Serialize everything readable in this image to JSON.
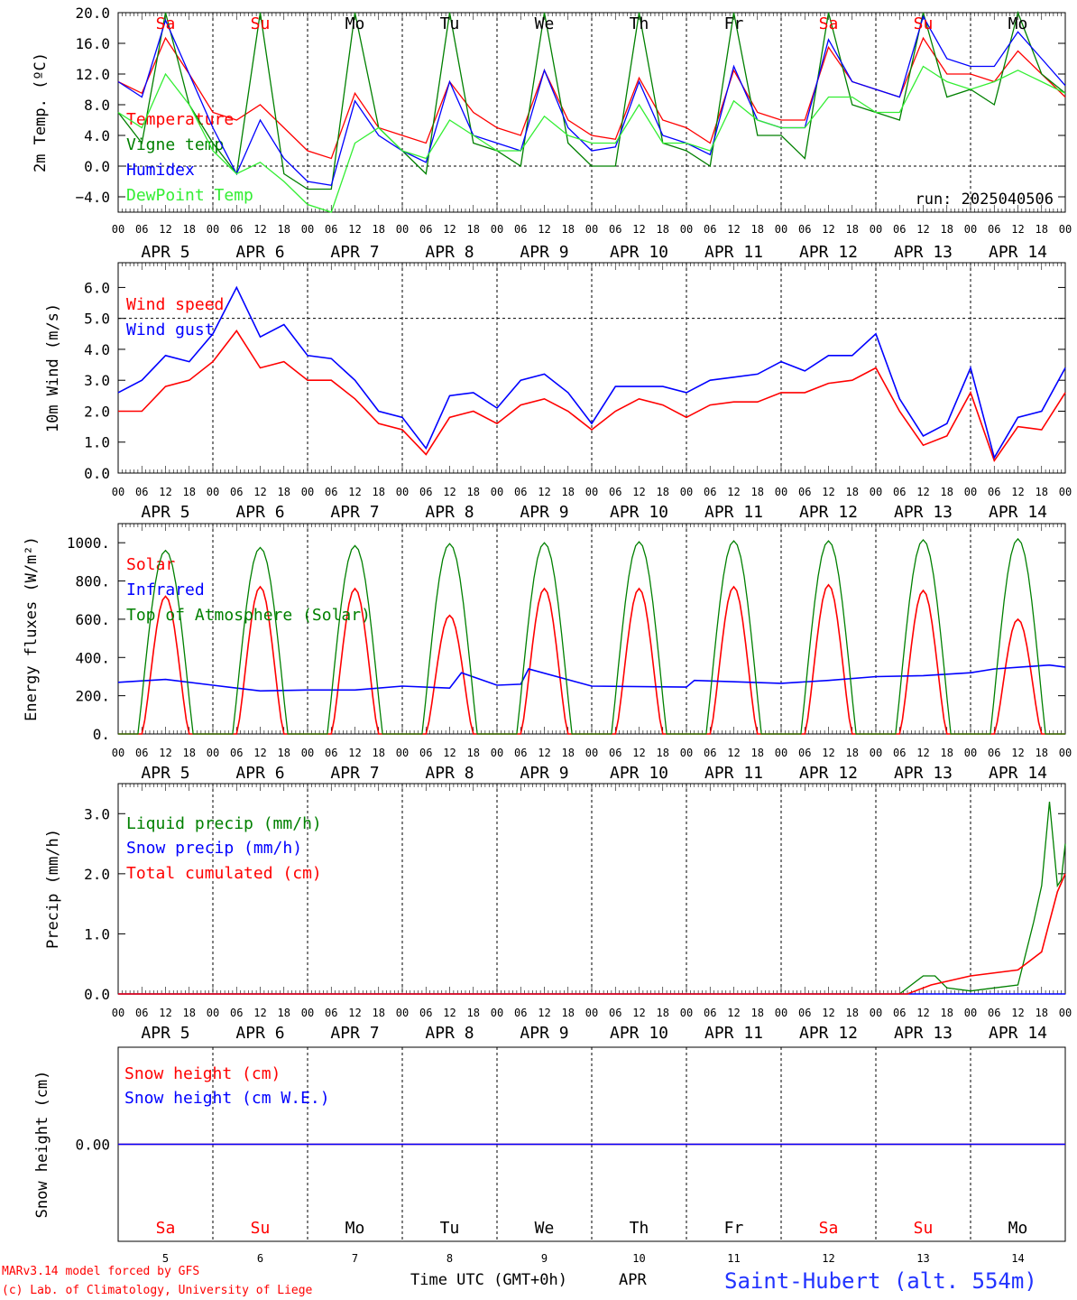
{
  "days": {
    "names": [
      "Sa",
      "Su",
      "Mo",
      "Tu",
      "We",
      "Th",
      "Fr",
      "Sa",
      "Su",
      "Mo"
    ],
    "weekend_flags": [
      true,
      true,
      false,
      false,
      false,
      false,
      false,
      true,
      true,
      false
    ],
    "dates": [
      "APR  5",
      "APR  6",
      "APR  7",
      "APR  8",
      "APR  9",
      "APR 10",
      "APR 11",
      "APR 12",
      "APR 13",
      "APR 14"
    ],
    "numbers": [
      "5",
      "6",
      "7",
      "8",
      "9",
      "10",
      "11",
      "12",
      "13",
      "14"
    ],
    "hour_labels": [
      "00",
      "06",
      "12",
      "18"
    ],
    "final_hour_label": "00"
  },
  "colors": {
    "red": "#ff0000",
    "green": "#008000",
    "blue": "#0000ff",
    "lightgreen": "#33ee33",
    "dark": "#000000"
  },
  "footer": {
    "model_line1": "MARv3.14 model forced by GFS",
    "model_line2": "(c) Lab. of Climatology, University of Liege",
    "time_axis_label": "Time UTC (GMT+0h)",
    "month_label": "APR",
    "station": "Saint-Hubert (alt. 554m)"
  },
  "chart_data": [
    {
      "type": "line",
      "ylabel": "2m Temp. (ºC)",
      "y_ticks": [
        "−4.0",
        "0.0",
        "4.0",
        "8.0",
        "12.0",
        "16.0",
        "20.0"
      ],
      "ylim": [
        -6,
        20
      ],
      "reference_line": 0,
      "run_label": "run: 2025040506",
      "x_unit": "hours since APR 5 00 UTC",
      "series": [
        {
          "name": "Temperature",
          "color": "red",
          "x": [
            0,
            6,
            12,
            18,
            24,
            30,
            36,
            42,
            48,
            54,
            60,
            66,
            72,
            78,
            84,
            90,
            96,
            102,
            108,
            114,
            120,
            126,
            132,
            138,
            144,
            150,
            156,
            162,
            168,
            174,
            180,
            186,
            192,
            198,
            204,
            210,
            216,
            222,
            228,
            234,
            240
          ],
          "y": [
            11,
            9.5,
            16.7,
            12,
            7,
            6,
            8,
            5,
            2,
            1,
            9.5,
            5,
            4,
            3,
            11,
            7,
            5,
            4,
            12.5,
            6,
            4,
            3.5,
            11.5,
            6,
            5,
            3,
            12.5,
            7,
            6,
            6,
            15.5,
            11,
            10,
            9,
            16.7,
            12,
            12,
            11,
            15,
            12,
            9
          ]
        },
        {
          "name": "Vigne temp",
          "color": "green",
          "x": [
            0,
            6,
            12,
            18,
            24,
            30,
            36,
            42,
            48,
            54,
            60,
            66,
            72,
            78,
            84,
            90,
            96,
            102,
            108,
            114,
            120,
            126,
            132,
            138,
            144,
            150,
            156,
            162,
            168,
            174,
            180,
            186,
            192,
            198,
            204,
            210,
            216,
            222,
            228,
            234,
            240
          ],
          "y": [
            7,
            3,
            20.5,
            8,
            3,
            -1,
            20.5,
            -1,
            -3,
            -3,
            20.5,
            5,
            2,
            -1,
            20.5,
            3,
            2,
            0,
            20.5,
            3,
            0,
            0,
            20.5,
            3,
            2,
            0,
            20.5,
            4,
            4,
            1,
            20.5,
            8,
            7,
            6,
            20.5,
            9,
            10,
            8,
            20.5,
            12,
            9.5
          ]
        },
        {
          "name": "Humidex",
          "color": "blue",
          "x": [
            0,
            6,
            12,
            18,
            24,
            30,
            36,
            42,
            48,
            54,
            60,
            66,
            72,
            78,
            84,
            90,
            96,
            102,
            108,
            114,
            120,
            126,
            132,
            138,
            144,
            150,
            156,
            162,
            168,
            174,
            180,
            186,
            192,
            198,
            204,
            210,
            216,
            222,
            228,
            234,
            240
          ],
          "y": [
            11,
            9,
            19,
            12,
            5,
            -1,
            6,
            1,
            -2,
            -2.5,
            8.5,
            4,
            2,
            0.5,
            11,
            4,
            3,
            2,
            12.5,
            5,
            2,
            2.5,
            11,
            4,
            3,
            1.5,
            13,
            6,
            5,
            5,
            16.5,
            11,
            10,
            9,
            19.5,
            14,
            13,
            13,
            17.5,
            14,
            10.5
          ]
        },
        {
          "name": "DewPoint Temp",
          "color": "lightgreen",
          "x": [
            0,
            6,
            12,
            18,
            24,
            30,
            36,
            42,
            48,
            54,
            60,
            66,
            72,
            78,
            84,
            90,
            96,
            102,
            108,
            114,
            120,
            126,
            132,
            138,
            144,
            150,
            156,
            162,
            168,
            174,
            180,
            186,
            192,
            198,
            204,
            210,
            216,
            222,
            228,
            234,
            240
          ],
          "y": [
            7,
            5,
            12,
            8,
            2,
            -1,
            0.5,
            -2,
            -5,
            -6,
            3,
            5,
            2,
            1,
            6,
            4,
            2,
            2,
            6.5,
            4,
            3,
            3,
            8,
            3,
            3,
            2,
            8.5,
            6,
            5,
            5,
            9,
            9,
            7,
            7,
            13,
            11,
            10,
            11,
            12.5,
            11,
            9.5
          ]
        }
      ]
    },
    {
      "type": "line",
      "ylabel": "10m Wind (m/s)",
      "y_ticks": [
        "0.0",
        "1.0",
        "2.0",
        "3.0",
        "4.0",
        "5.0",
        "6.0"
      ],
      "ylim": [
        0,
        6.8
      ],
      "reference_line": 5,
      "x_unit": "hours since APR 5 00 UTC",
      "series": [
        {
          "name": "Wind speed",
          "color": "red",
          "x": [
            0,
            6,
            12,
            18,
            24,
            30,
            36,
            42,
            48,
            54,
            60,
            66,
            72,
            78,
            84,
            90,
            96,
            102,
            108,
            114,
            120,
            126,
            132,
            138,
            144,
            150,
            156,
            162,
            168,
            174,
            180,
            186,
            192,
            198,
            204,
            210,
            216,
            222,
            228,
            234,
            240
          ],
          "y": [
            2,
            2,
            2.8,
            3,
            3.6,
            4.6,
            3.4,
            3.6,
            3,
            3,
            2.4,
            1.6,
            1.4,
            0.6,
            1.8,
            2,
            1.6,
            2.2,
            2.4,
            2,
            1.4,
            2,
            2.4,
            2.2,
            1.8,
            2.2,
            2.3,
            2.3,
            2.6,
            2.6,
            2.9,
            3,
            3.4,
            2,
            0.9,
            1.2,
            2.6,
            0.4,
            1.5,
            1.4,
            2.6
          ]
        },
        {
          "name": "Wind gust",
          "color": "blue",
          "x": [
            0,
            6,
            12,
            18,
            24,
            30,
            36,
            42,
            48,
            54,
            60,
            66,
            72,
            78,
            84,
            90,
            96,
            102,
            108,
            114,
            120,
            126,
            132,
            138,
            144,
            150,
            156,
            162,
            168,
            174,
            180,
            186,
            192,
            198,
            204,
            210,
            216,
            222,
            228,
            234,
            240
          ],
          "y": [
            2.6,
            3,
            3.8,
            3.6,
            4.5,
            6,
            4.4,
            4.8,
            3.8,
            3.7,
            3,
            2,
            1.8,
            0.8,
            2.5,
            2.6,
            2.1,
            3,
            3.2,
            2.6,
            1.6,
            2.8,
            2.8,
            2.8,
            2.6,
            3,
            3.1,
            3.2,
            3.6,
            3.3,
            3.8,
            3.8,
            4.5,
            2.4,
            1.2,
            1.6,
            3.4,
            0.5,
            1.8,
            2,
            3.4
          ]
        }
      ]
    },
    {
      "type": "line",
      "ylabel": "Energy fluxes (W/m²)",
      "y_ticks": [
        "0.",
        "200.",
        "400.",
        "600.",
        "800.",
        "1000."
      ],
      "ylim": [
        0,
        1100
      ],
      "x_unit": "hours since APR 5 00 UTC",
      "series": [
        {
          "name": "Solar",
          "color": "red",
          "daily_peak": [
            720,
            770,
            760,
            620,
            760,
            760,
            770,
            780,
            750,
            600
          ]
        },
        {
          "name": "Infrared",
          "color": "blue",
          "x": [
            0,
            12,
            24,
            36,
            48,
            60,
            72,
            84,
            87,
            96,
            102,
            104,
            120,
            144,
            146,
            168,
            180,
            192,
            204,
            216,
            222,
            236,
            240
          ],
          "y": [
            270,
            285,
            255,
            225,
            230,
            230,
            250,
            240,
            320,
            255,
            260,
            340,
            250,
            245,
            280,
            265,
            280,
            300,
            305,
            320,
            340,
            360,
            350
          ]
        },
        {
          "name": "Top of Atmosphere (Solar)",
          "color": "green",
          "daily_peak": [
            960,
            975,
            985,
            995,
            1000,
            1005,
            1010,
            1010,
            1015,
            1020
          ]
        }
      ]
    },
    {
      "type": "line",
      "ylabel": "Precip (mm/h)",
      "y_ticks": [
        "0.0",
        "1.0",
        "2.0",
        "3.0"
      ],
      "ylim": [
        0,
        3.5
      ],
      "x_unit": "hours since APR 5 00 UTC",
      "series": [
        {
          "name": "Liquid precip (mm/h)",
          "color": "green",
          "x": [
            0,
            198,
            204,
            207,
            210,
            216,
            222,
            228,
            232,
            234,
            236,
            238,
            239,
            240
          ],
          "y": [
            0,
            0,
            0.3,
            0.3,
            0.1,
            0.05,
            0.1,
            0.15,
            1.2,
            1.8,
            3.2,
            1.8,
            1.9,
            2.5
          ]
        },
        {
          "name": "Snow precip (mm/h)",
          "color": "blue",
          "x": [
            0,
            240
          ],
          "y": [
            0,
            0
          ]
        },
        {
          "name": "Total cumulated (cm)",
          "color": "red",
          "x": [
            0,
            200,
            206,
            216,
            228,
            234,
            236,
            238,
            240
          ],
          "y": [
            0,
            0,
            0.15,
            0.3,
            0.4,
            0.7,
            1.2,
            1.7,
            2
          ]
        }
      ]
    },
    {
      "type": "line",
      "ylabel": "Snow height (cm)",
      "y_ticks": [
        "0.00"
      ],
      "ylim": [
        -1,
        1
      ],
      "x_unit": "hours since APR 5 00 UTC",
      "series": [
        {
          "name": "Snow height (cm)",
          "color": "red",
          "x": [
            0,
            240
          ],
          "y": [
            0,
            0
          ]
        },
        {
          "name": "Snow height (cm W.E.)",
          "color": "blue",
          "x": [
            0,
            240
          ],
          "y": [
            0,
            0
          ]
        }
      ]
    }
  ]
}
